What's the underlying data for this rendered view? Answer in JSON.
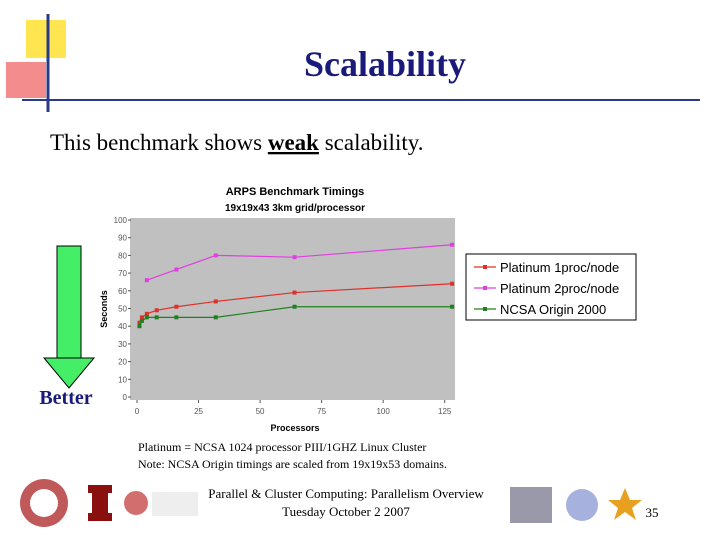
{
  "slide": {
    "title": "Scalability",
    "body": [
      "This benchmark shows ",
      "weak",
      " scalability."
    ],
    "better_label": "Better",
    "notes": [
      "Platinum = NCSA 1024 processor PIII/1GHZ Linux Cluster",
      "Note: NCSA Origin timings are scaled from 19x19x53 domains."
    ],
    "footer": [
      "Parallel & Cluster Computing: Parallelism Overview",
      "Tuesday October 2 2007"
    ],
    "page_number": "35"
  },
  "chart_data": {
    "type": "line",
    "title": "ARPS Benchmark Timings",
    "subtitle": "19x19x43 3km grid/processor",
    "x_label": "Processors",
    "y_label": "Seconds",
    "xlim": [
      0,
      130
    ],
    "xticks": [
      0,
      25,
      50,
      75,
      100,
      125
    ],
    "ylim": [
      0,
      100
    ],
    "yticks": [
      0,
      10,
      20,
      30,
      40,
      50,
      60,
      70,
      80,
      90,
      100
    ],
    "series": [
      {
        "name": "Platinum 1proc/node",
        "color": "#e0302a",
        "x": [
          1,
          2,
          4,
          8,
          16,
          32,
          64,
          128
        ],
        "values": [
          42,
          45,
          47,
          49,
          51,
          54,
          59,
          64
        ]
      },
      {
        "name": "Platinum 2proc/node",
        "color": "#e040e0",
        "x": [
          4,
          16,
          32,
          64,
          128
        ],
        "values": [
          66,
          72,
          80,
          79,
          86
        ]
      },
      {
        "name": "NCSA Origin 2000",
        "color": "#208020",
        "x": [
          1,
          2,
          4,
          8,
          16,
          32,
          64,
          128
        ],
        "values": [
          40,
          43,
          45,
          45,
          45,
          45,
          51,
          51
        ]
      }
    ]
  }
}
